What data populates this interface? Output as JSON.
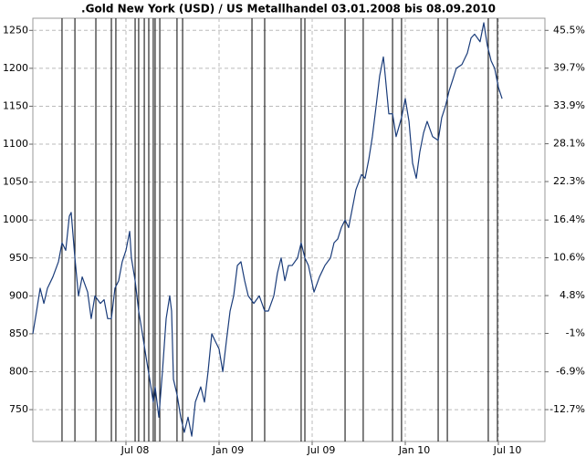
{
  "chart_data": {
    "type": "line",
    "title": ".Gold New York (USD) / US Metallhandel 03.01.2008 bis 08.09.2010",
    "xlim": [
      0,
      33
    ],
    "xticks": [
      {
        "value": 6,
        "label": "Jul 08"
      },
      {
        "value": 12,
        "label": "Jan 09"
      },
      {
        "value": 18,
        "label": "Jul 09"
      },
      {
        "value": 24,
        "label": "Jan 10"
      },
      {
        "value": 30,
        "label": "Jul 10"
      }
    ],
    "ylim": [
      708,
      1266
    ],
    "yticks": [
      750,
      800,
      850,
      900,
      950,
      1000,
      1050,
      1100,
      1150,
      1200,
      1250
    ],
    "y2lim": [
      -17.59,
      47.36
    ],
    "y2ticks": [
      {
        "value": -12.7,
        "label": "-12.7%"
      },
      {
        "value": -6.9,
        "label": "-6.9%"
      },
      {
        "value": -1,
        "label": "-1%"
      },
      {
        "value": 4.8,
        "label": "4.8%"
      },
      {
        "value": 10.6,
        "label": "10.6%"
      },
      {
        "value": 16.4,
        "label": "16.4%"
      },
      {
        "value": 22.3,
        "label": "22.3%"
      },
      {
        "value": 28.1,
        "label": "28.1%"
      },
      {
        "value": 33.9,
        "label": "33.9%"
      },
      {
        "value": 39.7,
        "label": "39.7%"
      },
      {
        "value": 45.5,
        "label": "45.5%"
      }
    ],
    "grid": true,
    "vlines": [
      1.88,
      2.71,
      4.06,
      5.06,
      5.35,
      6.59,
      6.82,
      7.18,
      7.47,
      7.76,
      7.88,
      8.18,
      9.29,
      9.65,
      14.12,
      14.94,
      17.29,
      17.53,
      20.12,
      21.29,
      23.18,
      23.76,
      26.12,
      26.71,
      29.35,
      29.94
    ],
    "color": "#1a3c7a",
    "x": [
      0,
      0.24,
      0.47,
      0.71,
      0.94,
      1.29,
      1.65,
      1.88,
      2.12,
      2.35,
      2.47,
      2.71,
      2.94,
      3.18,
      3.53,
      3.76,
      4.0,
      4.35,
      4.59,
      4.82,
      5.06,
      5.29,
      5.53,
      5.76,
      6.0,
      6.24,
      6.35,
      6.59,
      6.82,
      7.06,
      7.29,
      7.53,
      7.76,
      7.88,
      8.12,
      8.35,
      8.59,
      8.82,
      8.94,
      9.06,
      9.29,
      9.53,
      9.76,
      10.0,
      10.24,
      10.47,
      10.82,
      11.06,
      11.29,
      11.53,
      11.76,
      12.0,
      12.24,
      12.47,
      12.71,
      12.94,
      13.18,
      13.41,
      13.65,
      13.88,
      14.24,
      14.59,
      14.94,
      15.18,
      15.53,
      15.76,
      16.0,
      16.24,
      16.47,
      16.71,
      17.06,
      17.29,
      17.53,
      17.76,
      18.12,
      18.47,
      18.82,
      19.18,
      19.41,
      19.65,
      19.88,
      20.12,
      20.35,
      20.82,
      21.18,
      21.41,
      21.65,
      21.88,
      22.12,
      22.35,
      22.59,
      22.71,
      22.94,
      23.18,
      23.41,
      23.76,
      24.0,
      24.24,
      24.47,
      24.71,
      24.94,
      25.18,
      25.41,
      25.76,
      26.12,
      26.35,
      26.59,
      26.82,
      27.06,
      27.29,
      27.65,
      28.0,
      28.24,
      28.47,
      28.82,
      29.06,
      29.29,
      29.53,
      29.76,
      30.0,
      30.24
    ],
    "values": [
      850,
      880,
      910,
      890,
      910,
      925,
      945,
      970,
      960,
      1005,
      1010,
      950,
      900,
      925,
      905,
      870,
      900,
      890,
      895,
      870,
      870,
      910,
      920,
      945,
      960,
      985,
      950,
      920,
      880,
      850,
      820,
      790,
      760,
      780,
      740,
      800,
      870,
      900,
      880,
      790,
      770,
      740,
      720,
      740,
      715,
      760,
      780,
      760,
      800,
      850,
      840,
      830,
      800,
      840,
      880,
      900,
      940,
      945,
      920,
      900,
      890,
      900,
      880,
      880,
      900,
      930,
      950,
      920,
      940,
      940,
      950,
      970,
      950,
      940,
      905,
      925,
      940,
      950,
      970,
      975,
      990,
      1000,
      990,
      1040,
      1060,
      1055,
      1080,
      1110,
      1150,
      1190,
      1215,
      1190,
      1140,
      1140,
      1110,
      1135,
      1160,
      1130,
      1075,
      1055,
      1090,
      1115,
      1130,
      1110,
      1105,
      1135,
      1150,
      1170,
      1185,
      1200,
      1205,
      1220,
      1240,
      1245,
      1235,
      1260,
      1230,
      1210,
      1200,
      1175,
      1160
    ]
  }
}
